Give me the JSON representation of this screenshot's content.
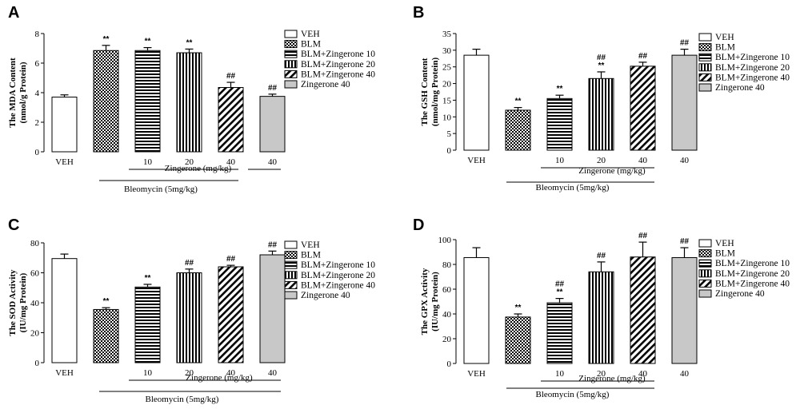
{
  "chart_data": [
    {
      "type": "bar",
      "panel": "A",
      "ylabel_line1": "The MDA Content",
      "ylabel_line2": "(nmol/g Protein)",
      "yticks": [
        0,
        2,
        4,
        6,
        8
      ],
      "ylim": [
        0,
        8
      ],
      "categories": [
        "VEH",
        "BLM",
        "BLM+Zingerone 10",
        "BLM+Zingerone 20",
        "BLM+Zingerone 40",
        "Zingerone 40"
      ],
      "values": [
        3.7,
        6.85,
        6.85,
        6.7,
        4.35,
        3.75
      ],
      "errors": [
        0.15,
        0.35,
        0.2,
        0.25,
        0.35,
        0.15
      ],
      "significance": [
        [],
        [
          "**"
        ],
        [
          "**"
        ],
        [
          "**"
        ],
        [
          "##"
        ],
        [
          "##"
        ]
      ],
      "xlabels": [
        "VEH",
        "",
        "10",
        "20",
        "40",
        "40"
      ],
      "zingerone_label": "Zingerone (mg/kg)",
      "bleomycin_label": "Bleomycin (5mg/kg)",
      "legend": [
        "VEH",
        "BLM",
        "BLM+Zingerone 10",
        "BLM+Zingerone 20",
        "BLM+Zingerone 40",
        "Zingerone 40"
      ]
    },
    {
      "type": "bar",
      "panel": "B",
      "ylabel_line1": "The GSH Content",
      "ylabel_line2": "(nmol/mg Protein)",
      "yticks": [
        0,
        5,
        10,
        15,
        20,
        25,
        30,
        35
      ],
      "ylim": [
        0,
        35
      ],
      "categories": [
        "VEH",
        "BLM",
        "BLM+Zingerone 10",
        "BLM+Zingerone 20",
        "BLM+Zingerone 40",
        "Zingerone 40"
      ],
      "values": [
        28.5,
        12.0,
        15.5,
        21.5,
        25.2,
        28.5
      ],
      "errors": [
        1.8,
        0.8,
        1.0,
        2.0,
        1.2,
        1.8
      ],
      "significance": [
        [],
        [
          "**"
        ],
        [
          "**"
        ],
        [
          "##",
          "**"
        ],
        [
          "##"
        ],
        [
          "##"
        ]
      ],
      "xlabels": [
        "VEH",
        "",
        "10",
        "20",
        "40",
        "40"
      ],
      "zingerone_label": "Zingerone (mg/kg)",
      "bleomycin_label": "Bleomycin (5mg/kg)",
      "legend": [
        "VEH",
        "BLM",
        "BLM+Zingerone 10",
        "BLM+Zingerone 20",
        "BLM+Zingerone 40",
        "Zingerone 40"
      ]
    },
    {
      "type": "bar",
      "panel": "C",
      "ylabel_line1": "The SOD Activity",
      "ylabel_line2": "(IU/mg Protein)",
      "yticks": [
        0,
        20,
        40,
        60,
        80
      ],
      "ylim": [
        0,
        80
      ],
      "categories": [
        "VEH",
        "BLM",
        "BLM+Zingerone 10",
        "BLM+Zingerone 20",
        "BLM+Zingerone 40",
        "Zingerone 40"
      ],
      "values": [
        69.5,
        35.5,
        50.5,
        60.0,
        64.0,
        72.0
      ],
      "errors": [
        3.0,
        1.2,
        1.8,
        2.5,
        1.0,
        2.5
      ],
      "significance": [
        [],
        [
          "**"
        ],
        [
          "**"
        ],
        [
          "##"
        ],
        [
          "##"
        ],
        [
          "##"
        ]
      ],
      "xlabels": [
        "VEH",
        "",
        "10",
        "20",
        "40",
        "40"
      ],
      "zingerone_label": "Zingerone (mg/kg)",
      "bleomycin_label": "Bleomycin (5mg/kg)",
      "legend": [
        "VEH",
        "BLM",
        "BLM+Zingerone 10",
        "BLM+Zingerone 20",
        "BLM+Zingerone 40",
        "Zingerone 40"
      ]
    },
    {
      "type": "bar",
      "panel": "D",
      "ylabel_line1": "The GPX Activity",
      "ylabel_line2": "(IU/mg Protein)",
      "yticks": [
        0,
        20,
        40,
        60,
        80,
        100
      ],
      "ylim": [
        0,
        100
      ],
      "categories": [
        "VEH",
        "BLM",
        "BLM+Zingerone 10",
        "BLM+Zingerone 20",
        "BLM+Zingerone 40",
        "Zingerone 40"
      ],
      "values": [
        85.5,
        37.5,
        49.0,
        74.0,
        86.0,
        85.5
      ],
      "errors": [
        8.0,
        2.5,
        3.5,
        8.0,
        12.0,
        8.0
      ],
      "significance": [
        [],
        [
          "**"
        ],
        [
          "##",
          "**"
        ],
        [
          "##"
        ],
        [
          "##"
        ],
        [
          "##"
        ]
      ],
      "xlabels": [
        "VEH",
        "",
        "10",
        "20",
        "40",
        "40"
      ],
      "zingerone_label": "Zingerone (mg/kg)",
      "bleomycin_label": "Bleomycin (5mg/kg)",
      "legend": [
        "VEH",
        "BLM",
        "BLM+Zingerone 10",
        "BLM+Zingerone 20",
        "BLM+Zingerone 40",
        "Zingerone 40"
      ]
    }
  ]
}
